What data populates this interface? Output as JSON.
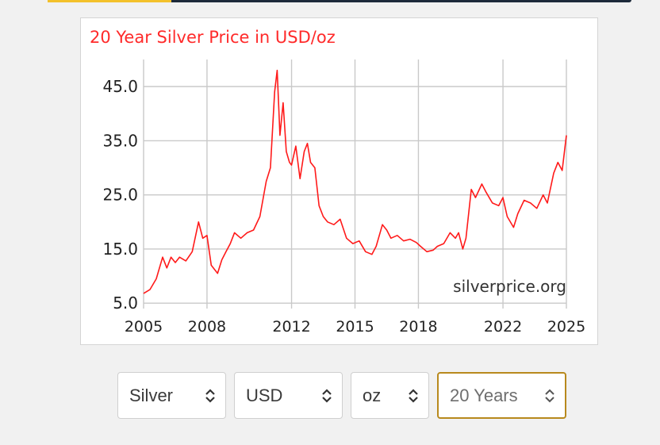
{
  "chart_data": {
    "type": "line",
    "title": "20 Year Silver Price in USD/oz",
    "watermark": "silverprice.org",
    "xlabel": "",
    "ylabel": "",
    "xlim": [
      2005.0,
      2025.0
    ],
    "ylim": [
      4.0,
      50.0
    ],
    "yticks": [
      5.0,
      15.0,
      25.0,
      35.0,
      45.0
    ],
    "ytick_labels": [
      "5.0",
      "15.0",
      "25.0",
      "35.0",
      "45.0"
    ],
    "xticks": [
      2005,
      2008,
      2012,
      2015,
      2018,
      2022,
      2025
    ],
    "xtick_labels": [
      "2005",
      "2008",
      "2012",
      "2015",
      "2018",
      "2022",
      "2025"
    ],
    "grid": true,
    "line_color": "#ff1a1a",
    "title_color": "#ff2a2a",
    "series": [
      {
        "x": [
          2005.0,
          2005.3,
          2005.6,
          2005.9,
          2006.1,
          2006.3,
          2006.5,
          2006.7,
          2007.0,
          2007.3,
          2007.6,
          2007.8,
          2008.0,
          2008.2,
          2008.5,
          2008.7,
          2008.9,
          2009.1,
          2009.3,
          2009.6,
          2009.9,
          2010.2,
          2010.5,
          2010.8,
          2011.0,
          2011.2,
          2011.32,
          2011.45,
          2011.6,
          2011.75,
          2011.9,
          2012.0,
          2012.2,
          2012.4,
          2012.6,
          2012.75,
          2012.9,
          2013.1,
          2013.3,
          2013.5,
          2013.7,
          2014.0,
          2014.3,
          2014.6,
          2014.9,
          2015.2,
          2015.5,
          2015.8,
          2016.0,
          2016.3,
          2016.5,
          2016.7,
          2017.0,
          2017.3,
          2017.6,
          2017.9,
          2018.1,
          2018.4,
          2018.7,
          2018.9,
          2019.2,
          2019.5,
          2019.75,
          2019.9,
          2020.1,
          2020.25,
          2020.5,
          2020.7,
          2021.0,
          2021.2,
          2021.5,
          2021.8,
          2022.0,
          2022.2,
          2022.5,
          2022.7,
          2023.0,
          2023.3,
          2023.6,
          2023.9,
          2024.1,
          2024.4,
          2024.6,
          2024.8,
          2025.0
        ],
        "values": [
          6.8,
          7.5,
          9.5,
          13.5,
          11.5,
          13.5,
          12.5,
          13.5,
          12.8,
          14.5,
          20.0,
          17.0,
          17.5,
          12.0,
          10.5,
          13.0,
          14.5,
          16.0,
          18.0,
          17.0,
          18.0,
          18.5,
          21.0,
          27.5,
          30.0,
          44.0,
          48.0,
          36.0,
          42.0,
          33.0,
          31.0,
          30.5,
          34.0,
          28.0,
          33.0,
          34.5,
          31.0,
          30.0,
          23.0,
          21.0,
          20.0,
          19.5,
          20.5,
          17.0,
          16.0,
          16.5,
          14.5,
          14.0,
          15.5,
          19.5,
          18.5,
          17.0,
          17.5,
          16.5,
          16.8,
          16.2,
          15.5,
          14.5,
          14.8,
          15.5,
          16.0,
          18.0,
          17.0,
          18.0,
          15.0,
          17.0,
          26.0,
          24.5,
          27.0,
          25.5,
          23.5,
          23.0,
          24.5,
          21.0,
          19.0,
          21.5,
          24.0,
          23.5,
          22.5,
          25.0,
          23.5,
          29.0,
          31.0,
          29.5,
          36.0
        ]
      }
    ]
  },
  "controls": {
    "metal": "Silver",
    "currency": "USD",
    "unit": "oz",
    "period": "20 Years"
  }
}
